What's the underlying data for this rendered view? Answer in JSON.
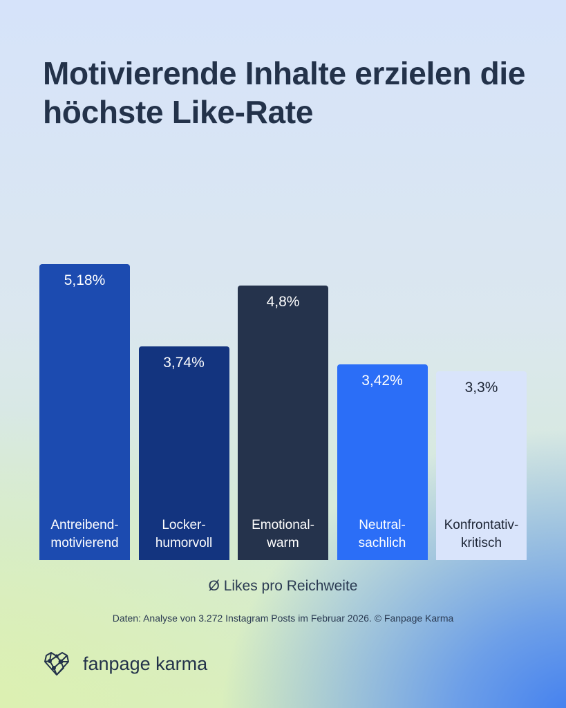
{
  "title": "Motivierende Inhalte erzielen die höchste Like-Rate",
  "chart_data": {
    "type": "bar",
    "categories": [
      "Antreibend-\nmotivierend",
      "Locker-\nhumorvoll",
      "Emotional-\nwarm",
      "Neutral-\nsachlich",
      "Konfrontativ-\nkritisch"
    ],
    "values": [
      5.18,
      3.74,
      4.8,
      3.42,
      3.3
    ],
    "value_labels": [
      "5,18%",
      "3,74%",
      "4,8%",
      "3,42%",
      "3,3%"
    ],
    "colors": [
      "#1c4bb0",
      "#13347f",
      "#25334c",
      "#2b6ef7",
      "#d9e4fb"
    ],
    "text_colors": [
      "#ffffff",
      "#ffffff",
      "#ffffff",
      "#ffffff",
      "#1d2535"
    ],
    "xlabel": "Ø Likes pro Reichweite",
    "ylabel": "",
    "ylim": [
      0,
      5.18
    ],
    "grid": false
  },
  "source": "Daten: Analyse von 3.272 Instagram Posts im Februar 2026. © Fanpage Karma",
  "logo": {
    "text": "fanpage karma",
    "icon": "heart-network-icon"
  }
}
